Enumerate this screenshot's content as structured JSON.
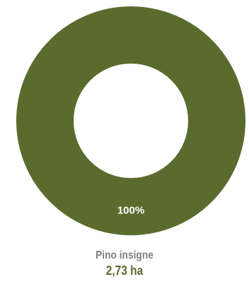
{
  "chart_data": {
    "type": "pie",
    "variant": "donut",
    "slices": [
      {
        "label": "Pino insigne",
        "value": 2.73,
        "value_text": "2,73 ha",
        "percent_text": "100%",
        "color": "#5a6b2e"
      }
    ]
  },
  "legend": {
    "name": "Pino insigne",
    "value": "2,73 ha"
  }
}
